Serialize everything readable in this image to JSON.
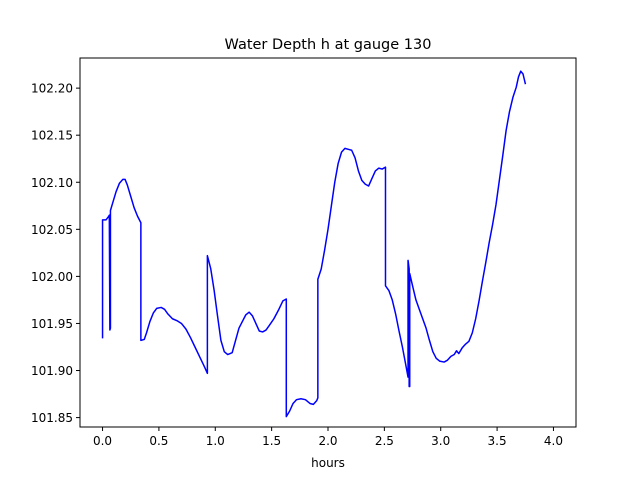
{
  "chart_data": {
    "type": "line",
    "title": "Water Depth h at gauge 130",
    "xlabel": "hours",
    "ylabel": "",
    "xlim": [
      -0.2,
      4.2
    ],
    "ylim": [
      101.84,
      102.232
    ],
    "x_ticks": [
      0.0,
      0.5,
      1.0,
      1.5,
      2.0,
      2.5,
      3.0,
      3.5,
      4.0
    ],
    "x_tick_labels": [
      "0.0",
      "0.5",
      "1.0",
      "1.5",
      "2.0",
      "2.5",
      "3.0",
      "3.5",
      "4.0"
    ],
    "y_ticks": [
      101.85,
      101.9,
      101.95,
      102.0,
      102.05,
      102.1,
      102.15,
      102.2
    ],
    "y_tick_labels": [
      "101.85",
      "101.90",
      "101.95",
      "102.00",
      "102.05",
      "102.10",
      "102.15",
      "102.20"
    ],
    "grid": false,
    "series": [
      {
        "color": "#0000ff",
        "points": [
          [
            0.0,
            101.935
          ],
          [
            0.0,
            102.06
          ],
          [
            0.03,
            102.06
          ],
          [
            0.05,
            102.063
          ],
          [
            0.06,
            102.065
          ],
          [
            0.065,
            101.943
          ],
          [
            0.07,
            101.945
          ],
          [
            0.07,
            102.07
          ],
          [
            0.09,
            102.078
          ],
          [
            0.12,
            102.09
          ],
          [
            0.15,
            102.099
          ],
          [
            0.18,
            102.103
          ],
          [
            0.2,
            102.103
          ],
          [
            0.22,
            102.097
          ],
          [
            0.25,
            102.085
          ],
          [
            0.28,
            102.073
          ],
          [
            0.31,
            102.064
          ],
          [
            0.34,
            102.057
          ],
          [
            0.34,
            101.932
          ],
          [
            0.37,
            101.933
          ],
          [
            0.39,
            101.94
          ],
          [
            0.42,
            101.952
          ],
          [
            0.45,
            101.961
          ],
          [
            0.48,
            101.966
          ],
          [
            0.52,
            101.967
          ],
          [
            0.55,
            101.965
          ],
          [
            0.58,
            101.96
          ],
          [
            0.62,
            101.955
          ],
          [
            0.66,
            101.953
          ],
          [
            0.7,
            101.95
          ],
          [
            0.74,
            101.944
          ],
          [
            0.78,
            101.935
          ],
          [
            0.82,
            101.925
          ],
          [
            0.86,
            101.915
          ],
          [
            0.9,
            101.905
          ],
          [
            0.93,
            101.897
          ],
          [
            0.93,
            102.022
          ],
          [
            0.96,
            102.008
          ],
          [
            0.99,
            101.985
          ],
          [
            1.02,
            101.958
          ],
          [
            1.05,
            101.932
          ],
          [
            1.08,
            101.92
          ],
          [
            1.11,
            101.917
          ],
          [
            1.15,
            101.919
          ],
          [
            1.18,
            101.932
          ],
          [
            1.21,
            101.945
          ],
          [
            1.24,
            101.952
          ],
          [
            1.27,
            101.959
          ],
          [
            1.3,
            101.962
          ],
          [
            1.33,
            101.958
          ],
          [
            1.36,
            101.95
          ],
          [
            1.39,
            101.942
          ],
          [
            1.42,
            101.941
          ],
          [
            1.45,
            101.943
          ],
          [
            1.48,
            101.948
          ],
          [
            1.52,
            101.955
          ],
          [
            1.56,
            101.964
          ],
          [
            1.6,
            101.974
          ],
          [
            1.63,
            101.976
          ],
          [
            1.63,
            101.851
          ],
          [
            1.66,
            101.857
          ],
          [
            1.69,
            101.865
          ],
          [
            1.72,
            101.869
          ],
          [
            1.76,
            101.87
          ],
          [
            1.8,
            101.869
          ],
          [
            1.84,
            101.865
          ],
          [
            1.87,
            101.864
          ],
          [
            1.9,
            101.868
          ],
          [
            1.91,
            101.871
          ],
          [
            1.91,
            101.997
          ],
          [
            1.94,
            102.008
          ],
          [
            1.97,
            102.028
          ],
          [
            2.0,
            102.05
          ],
          [
            2.03,
            102.075
          ],
          [
            2.06,
            102.1
          ],
          [
            2.09,
            102.12
          ],
          [
            2.12,
            102.132
          ],
          [
            2.15,
            102.136
          ],
          [
            2.18,
            102.135
          ],
          [
            2.21,
            102.134
          ],
          [
            2.24,
            102.126
          ],
          [
            2.27,
            102.112
          ],
          [
            2.3,
            102.102
          ],
          [
            2.33,
            102.098
          ],
          [
            2.36,
            102.096
          ],
          [
            2.39,
            102.104
          ],
          [
            2.42,
            102.112
          ],
          [
            2.45,
            102.115
          ],
          [
            2.48,
            102.114
          ],
          [
            2.51,
            102.116
          ],
          [
            2.51,
            101.99
          ],
          [
            2.54,
            101.985
          ],
          [
            2.57,
            101.975
          ],
          [
            2.6,
            101.96
          ],
          [
            2.63,
            101.942
          ],
          [
            2.66,
            101.925
          ],
          [
            2.69,
            101.906
          ],
          [
            2.71,
            101.893
          ],
          [
            2.71,
            102.017
          ],
          [
            2.72,
            102.008
          ],
          [
            2.72,
            101.883
          ],
          [
            2.725,
            101.883
          ],
          [
            2.725,
            102.003
          ],
          [
            2.75,
            101.99
          ],
          [
            2.78,
            101.975
          ],
          [
            2.81,
            101.965
          ],
          [
            2.84,
            101.955
          ],
          [
            2.87,
            101.945
          ],
          [
            2.9,
            101.932
          ],
          [
            2.93,
            101.92
          ],
          [
            2.96,
            101.913
          ],
          [
            2.99,
            101.91
          ],
          [
            3.03,
            101.909
          ],
          [
            3.06,
            101.911
          ],
          [
            3.09,
            101.915
          ],
          [
            3.12,
            101.917
          ],
          [
            3.14,
            101.921
          ],
          [
            3.16,
            101.918
          ],
          [
            3.19,
            101.924
          ],
          [
            3.22,
            101.928
          ],
          [
            3.25,
            101.931
          ],
          [
            3.28,
            101.94
          ],
          [
            3.31,
            101.955
          ],
          [
            3.34,
            101.974
          ],
          [
            3.37,
            101.995
          ],
          [
            3.4,
            102.015
          ],
          [
            3.43,
            102.036
          ],
          [
            3.46,
            102.055
          ],
          [
            3.49,
            102.076
          ],
          [
            3.52,
            102.102
          ],
          [
            3.55,
            102.128
          ],
          [
            3.58,
            102.155
          ],
          [
            3.61,
            102.175
          ],
          [
            3.64,
            102.19
          ],
          [
            3.67,
            102.201
          ],
          [
            3.69,
            102.212
          ],
          [
            3.71,
            102.218
          ],
          [
            3.73,
            102.215
          ],
          [
            3.75,
            102.205
          ]
        ]
      }
    ]
  }
}
